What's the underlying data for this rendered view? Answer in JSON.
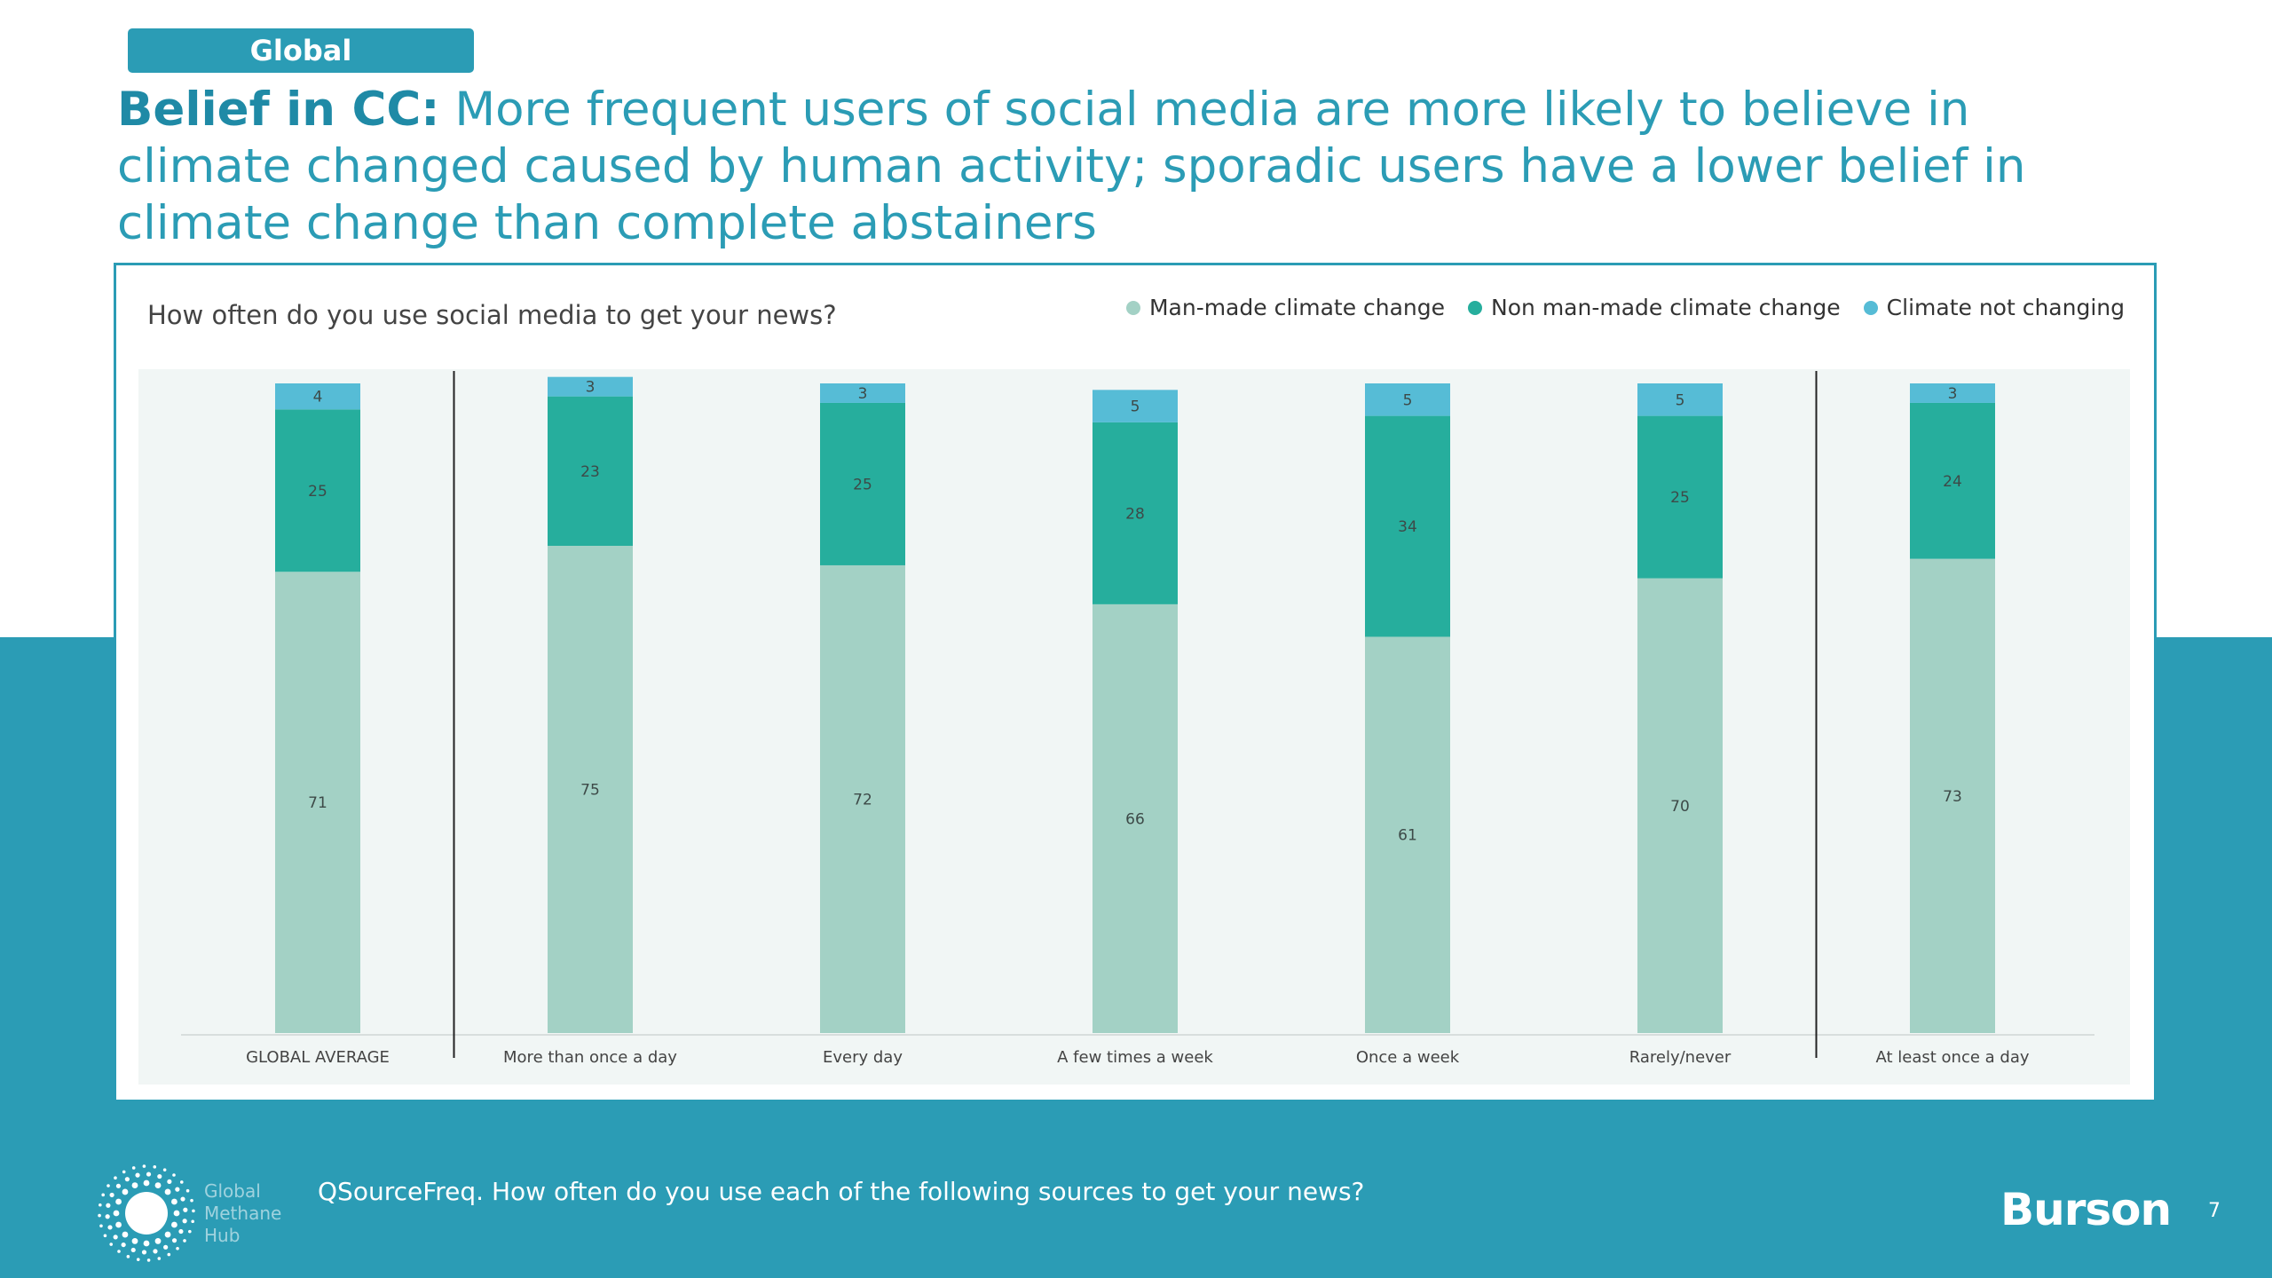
{
  "tag": "Global",
  "headline": {
    "lead": "Belief in CC:",
    "rest": "More frequent users of social media are more likely to believe in climate changed caused by human activity; sporadic users have a lower belief in climate change than complete abstainers"
  },
  "chart_data": {
    "type": "bar",
    "stacked": true,
    "title": "How often do you use social media to get your news?",
    "legend_position": "top-right",
    "categories": [
      "GLOBAL AVERAGE",
      "More than once a day",
      "Every day",
      "A few times a week",
      "Once a week",
      "Rarely/never",
      "At least once a day"
    ],
    "series": [
      {
        "name": "Man-made climate change",
        "color": "#a3d1c5",
        "values": [
          71,
          75,
          72,
          66,
          61,
          70,
          73
        ]
      },
      {
        "name": "Non man-made climate change",
        "color": "#26ae9d",
        "values": [
          25,
          23,
          25,
          28,
          34,
          25,
          24
        ]
      },
      {
        "name": "Climate not changing",
        "color": "#56bcd6",
        "values": [
          4,
          3,
          3,
          5,
          5,
          5,
          3
        ]
      }
    ],
    "ylim": [
      0,
      100
    ],
    "dividers_after_category_index": [
      0,
      5
    ]
  },
  "footer": {
    "question": "QSourceFreq. How often do you use each of the following sources to get your news?",
    "logo_text": [
      "Global",
      "Methane",
      "Hub"
    ],
    "brand": "Burson",
    "page_number": "7"
  }
}
